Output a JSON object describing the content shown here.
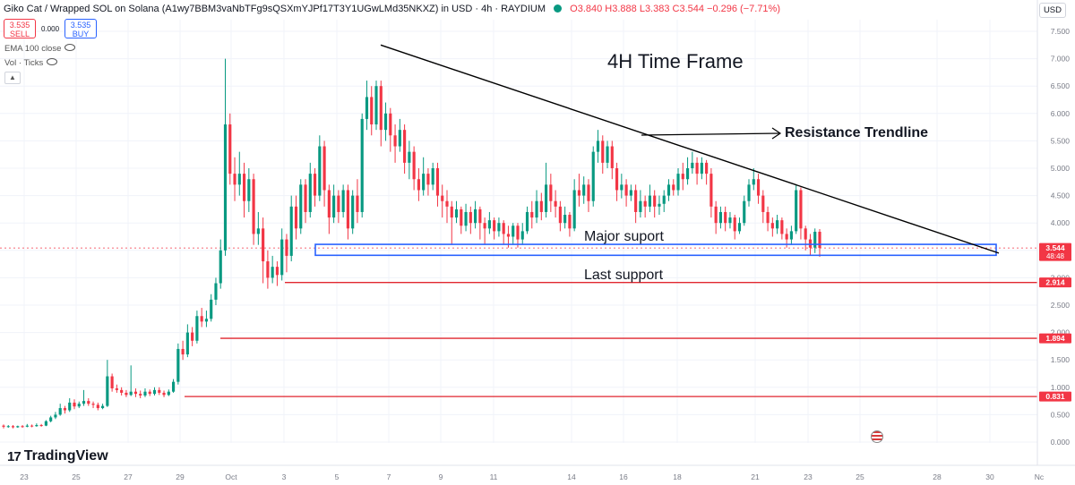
{
  "header": {
    "title": "Giko Cat / Wrapped SOL on Solana (A1wy7BBM3vaNbTFg9sQSXmYJPf17T3Y1UGwLMd35NKXZ) in USD · 4h · RAYDIUM",
    "ohlc": "O3.840 H3.888 L3.383 C3.544 −0.296 (−7.71%)"
  },
  "trade": {
    "sell_price": "3.535",
    "sell_label": "SELL",
    "spread": "0.000",
    "buy_price": "3.535",
    "buy_label": "BUY"
  },
  "indicators": [
    "EMA 100 close",
    "Vol · Ticks"
  ],
  "currency": "USD",
  "brand": "TradingView",
  "annotations": {
    "heading": "4H Time Frame",
    "resistance": "Resistance Trendline",
    "major": "Major suport",
    "last": "Last support"
  },
  "chart_data": {
    "type": "candlestick",
    "ylim": [
      0,
      7.75
    ],
    "y_ticks": [
      "7.500",
      "7.000",
      "6.500",
      "6.000",
      "5.500",
      "5.000",
      "4.500",
      "4.000",
      "3.500",
      "3.000",
      "2.500",
      "2.000",
      "1.500",
      "1.000",
      "0.500",
      "0.000"
    ],
    "x_ticks": [
      "23",
      "25",
      "27",
      "29",
      "Oct",
      "3",
      "5",
      "7",
      "9",
      "11",
      "14",
      "16",
      "18",
      "21",
      "23",
      "25",
      "28",
      "30",
      "Nc"
    ],
    "price_labels": [
      {
        "value": 3.544,
        "text": "3.544",
        "sub": "48:48",
        "color": "#f23645"
      },
      {
        "value": 2.914,
        "text": "2.914",
        "color": "#f23645"
      },
      {
        "value": 1.894,
        "text": "1.894",
        "color": "#f23645"
      },
      {
        "value": 0.831,
        "text": "0.831",
        "color": "#f23645"
      }
    ],
    "support_lines": [
      2.914,
      1.894,
      0.831
    ],
    "major_support_zone": [
      3.41,
      3.61
    ],
    "resistance_trendline": [
      7.25,
      3.45
    ],
    "last_close": 3.544,
    "colors": {
      "up": "#089981",
      "down": "#f23645",
      "trend": "#000000",
      "zone": "#2962ff",
      "support": "#e0262f"
    }
  }
}
